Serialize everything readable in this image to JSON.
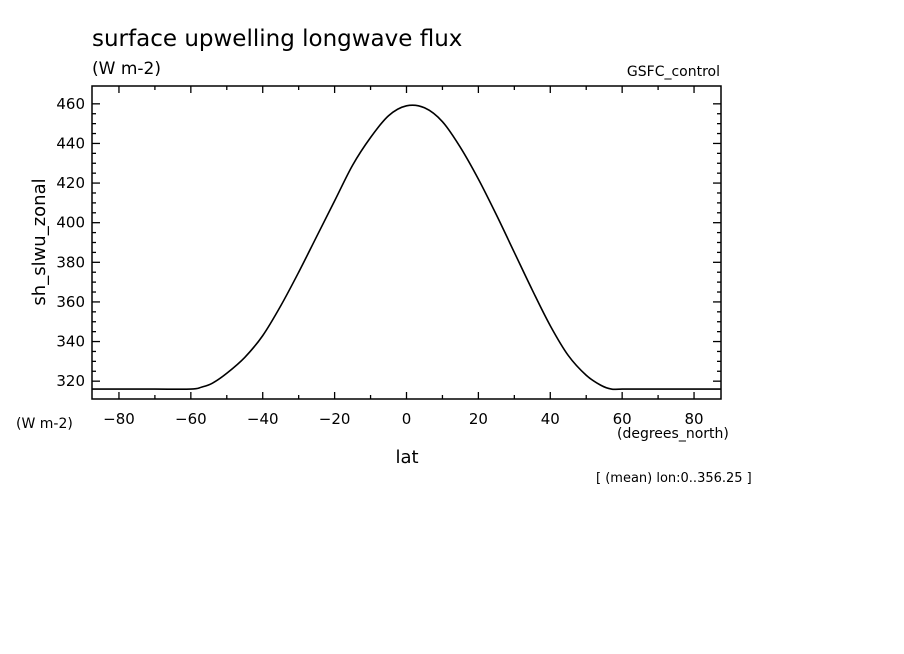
{
  "chart_data": {
    "type": "line",
    "title": "surface upwelling longwave flux",
    "units_label": "(W m-2)",
    "dataset_label": "GSFC_control",
    "xlabel": "lat",
    "ylabel": "sh_slwu_zonal",
    "x_units": "(degrees_north)",
    "y_units": "(W m-2)",
    "annotation": "[ (mean) lon:0..356.25 ]",
    "xlim": [
      -87.5,
      87.5
    ],
    "ylim": [
      311,
      469
    ],
    "x_ticks": [
      -80,
      -60,
      -40,
      -20,
      0,
      20,
      40,
      60,
      80
    ],
    "y_ticks": [
      320,
      340,
      360,
      380,
      400,
      420,
      440,
      460
    ],
    "grid": false,
    "series": [
      {
        "x": [
          -87.5,
          -80,
          -70,
          -60,
          -57,
          -54,
          -50,
          -45,
          -40,
          -35,
          -30,
          -25,
          -20,
          -15,
          -10,
          -5,
          0,
          5,
          10,
          15,
          20,
          25,
          30,
          35,
          40,
          45,
          50,
          54,
          57,
          60,
          70,
          80,
          87.5
        ],
        "y": [
          316,
          316,
          316,
          316,
          317,
          319,
          324,
          332,
          343,
          358,
          375,
          393,
          411,
          429,
          443,
          454,
          459,
          458,
          451,
          438,
          422,
          404,
          385,
          366,
          348,
          333,
          323,
          318,
          316,
          316,
          316,
          316,
          316
        ]
      }
    ]
  }
}
